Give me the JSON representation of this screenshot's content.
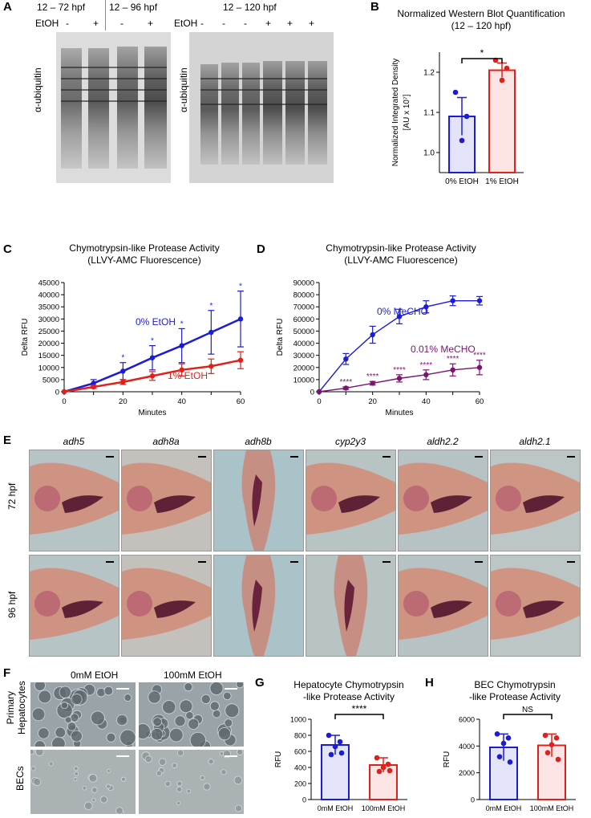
{
  "panels": {
    "a": {
      "label": "A",
      "group1": "12 – 72 hpf",
      "group2": "12 – 96 hpf",
      "group3": "12 – 120 hpf",
      "etoh": "EtOH",
      "lanes_left": [
        "-",
        "+",
        "-",
        "+"
      ],
      "lanes_right": [
        "-",
        "-",
        "-",
        "+",
        "+",
        "+"
      ],
      "ylabel": "α-ubiquitin"
    },
    "b": {
      "label": "B",
      "title_line1": "Normalized Western Blot Quantification",
      "title_line2": "(12 – 120 hpf)",
      "ylabel_line1": "Normalized Integrated Density",
      "ylabel_line2": "[AU x 10⁷]",
      "sig": "*"
    },
    "c": {
      "label": "C",
      "title_line1": "Chymotrypsin-like Protease Activity",
      "title_line2": "(LLVY-AMC Fluorescence)"
    },
    "d": {
      "label": "D",
      "title_line1": "Chymotrypsin-like Protease Activity",
      "title_line2": "(LLVY-AMC Fluorescence)"
    },
    "e": {
      "label": "E",
      "genes": [
        "adh5",
        "adh8a",
        "adh8b",
        "cyp2y3",
        "aldh2.2",
        "aldh2.1"
      ],
      "rows": [
        "72 hpf",
        "96 hpf"
      ]
    },
    "f": {
      "label": "F",
      "cols": [
        "0mM EtOH",
        "100mM EtOH"
      ],
      "row1_line1": "Primary",
      "row1_line2": "Hepatocytes",
      "row2": "BECs"
    },
    "g": {
      "label": "G",
      "title_line1": "Hepatocyte Chymotrypsin",
      "title_line2": "-like Protease Activity",
      "sig": "****"
    },
    "h": {
      "label": "H",
      "title_line1": "BEC Chymotrypsin",
      "title_line2": "-like Protease Activity",
      "sig": "NS"
    }
  },
  "colors": {
    "blue": "#1c1cd6",
    "red": "#e0201a",
    "purple": "#7b1470"
  },
  "chart_data": [
    {
      "id": "B",
      "type": "bar",
      "categories": [
        "0% EtOH",
        "1% EtOH"
      ],
      "values": [
        1.09,
        1.205
      ],
      "errors": [
        0.047,
        0.018
      ],
      "points": [
        [
          1.15,
          1.09,
          1.03
        ],
        [
          1.23,
          1.21,
          1.18
        ]
      ],
      "ylim": [
        0.95,
        1.25
      ],
      "yticks": [
        1.0,
        1.1,
        1.2
      ]
    },
    {
      "id": "C",
      "type": "line",
      "x": [
        0,
        10,
        20,
        30,
        40,
        50,
        60
      ],
      "xlabel": "Minutes",
      "ylabel": "Delta RFU",
      "xlim": [
        0,
        60
      ],
      "ylim": [
        0,
        45000
      ],
      "xticks": [
        0,
        20,
        40,
        60
      ],
      "yticks": [
        0,
        5000,
        10000,
        15000,
        20000,
        25000,
        30000,
        35000,
        40000,
        45000
      ],
      "series": [
        {
          "name": "0% EtOH",
          "values": [
            0,
            3500,
            8500,
            14000,
            19000,
            24500,
            30000
          ],
          "errors": [
            0,
            1500,
            3500,
            5000,
            7000,
            9000,
            11500
          ]
        },
        {
          "name": "1% EtOH",
          "values": [
            0,
            2000,
            4000,
            6500,
            9000,
            10500,
            13000
          ],
          "errors": [
            0,
            600,
            1000,
            1800,
            2500,
            3000,
            3500
          ]
        }
      ],
      "sig_markers": [
        "",
        "",
        "*",
        "*",
        "*",
        "*",
        "*"
      ]
    },
    {
      "id": "D",
      "type": "line",
      "x": [
        0,
        10,
        20,
        30,
        40,
        50,
        60
      ],
      "xlabel": "Minutes",
      "ylabel": "Delta RFU",
      "xlim": [
        0,
        60
      ],
      "ylim": [
        0,
        90000
      ],
      "xticks": [
        0,
        20,
        40,
        60
      ],
      "yticks": [
        0,
        10000,
        20000,
        30000,
        40000,
        50000,
        60000,
        70000,
        80000,
        90000
      ],
      "series": [
        {
          "name": "0% MeCHO",
          "values": [
            0,
            27000,
            47000,
            62000,
            70000,
            75000,
            75000
          ],
          "errors": [
            0,
            4500,
            7000,
            6000,
            5000,
            4000,
            3500
          ]
        },
        {
          "name": "0.01% MeCHO",
          "values": [
            0,
            3000,
            7000,
            11000,
            14000,
            18000,
            20000
          ],
          "errors": [
            0,
            1000,
            1500,
            3000,
            4000,
            5000,
            6000
          ]
        }
      ],
      "sig_markers": [
        "",
        "****",
        "****",
        "****",
        "****",
        "****",
        "****"
      ]
    },
    {
      "id": "G",
      "type": "bar",
      "categories": [
        "0mM EtOH",
        "100mM EtOH"
      ],
      "values": [
        680,
        430
      ],
      "errors": [
        120,
        90
      ],
      "points": [
        [
          800,
          720,
          660,
          560,
          580
        ],
        [
          520,
          440,
          400,
          350,
          360
        ]
      ],
      "ylabel": "RFU",
      "ylim": [
        0,
        1000
      ],
      "yticks": [
        0,
        200,
        400,
        600,
        800,
        1000
      ]
    },
    {
      "id": "H",
      "type": "bar",
      "categories": [
        "0mM EtOH",
        "100mM EtOH"
      ],
      "values": [
        3900,
        4050
      ],
      "errors": [
        1000,
        850
      ],
      "points": [
        [
          4900,
          4600,
          4200,
          3200,
          2800
        ],
        [
          4800,
          4600,
          4100,
          3500,
          3000
        ]
      ],
      "ylabel": "RFU",
      "ylim": [
        0,
        6000
      ],
      "yticks": [
        0,
        2000,
        4000,
        6000
      ]
    }
  ]
}
